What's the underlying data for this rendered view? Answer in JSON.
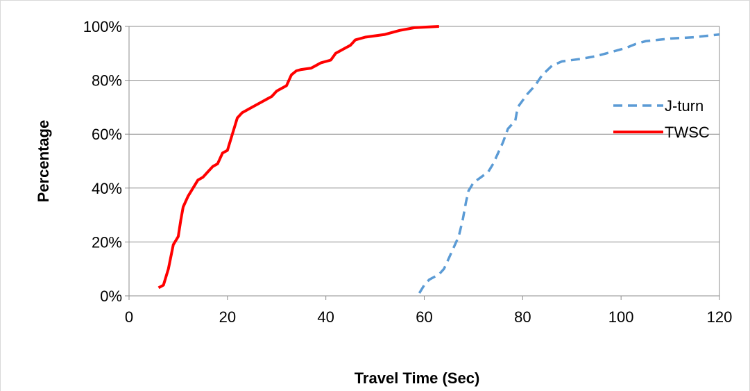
{
  "chart_data": {
    "type": "line",
    "title": "",
    "xlabel": "Travel Time (Sec)",
    "ylabel": "Percentage",
    "xlim": [
      0,
      120
    ],
    "ylim": [
      0,
      100
    ],
    "x_ticks": [
      0,
      20,
      40,
      60,
      80,
      100,
      120
    ],
    "x_tick_labels": [
      "0",
      "20",
      "40",
      "60",
      "80",
      "100",
      "120"
    ],
    "y_ticks": [
      0,
      20,
      40,
      60,
      80,
      100
    ],
    "y_tick_labels": [
      "0%",
      "20%",
      "40%",
      "60%",
      "80%",
      "100%"
    ],
    "grid": "horizontal",
    "legend": "right",
    "series": [
      {
        "name": "J-turn",
        "color": "#5b9bd5",
        "style": "dashed",
        "points": [
          [
            59,
            1
          ],
          [
            60,
            4
          ],
          [
            61,
            6
          ],
          [
            63,
            8
          ],
          [
            64,
            10
          ],
          [
            65,
            14
          ],
          [
            66,
            18
          ],
          [
            67,
            22
          ],
          [
            67.8,
            28
          ],
          [
            68.5,
            35
          ],
          [
            69,
            39
          ],
          [
            70,
            42
          ],
          [
            71.5,
            44
          ],
          [
            73,
            46
          ],
          [
            74,
            49
          ],
          [
            75,
            53
          ],
          [
            76,
            57
          ],
          [
            77,
            62
          ],
          [
            78.5,
            65
          ],
          [
            79,
            70
          ],
          [
            81,
            75
          ],
          [
            82.5,
            78
          ],
          [
            84,
            82
          ],
          [
            86,
            85.5
          ],
          [
            88,
            87
          ],
          [
            92,
            88
          ],
          [
            95,
            89
          ],
          [
            98,
            90.5
          ],
          [
            101,
            92
          ],
          [
            103,
            93.5
          ],
          [
            105,
            94.5
          ],
          [
            110,
            95.5
          ],
          [
            115,
            96
          ],
          [
            120,
            97
          ]
        ]
      },
      {
        "name": "TWSC",
        "color": "#ff0000",
        "style": "solid",
        "points": [
          [
            6,
            3
          ],
          [
            7,
            4
          ],
          [
            8,
            10
          ],
          [
            9,
            19
          ],
          [
            10,
            22
          ],
          [
            10.5,
            28
          ],
          [
            11,
            33
          ],
          [
            12,
            37
          ],
          [
            13,
            40
          ],
          [
            14,
            43
          ],
          [
            15,
            44
          ],
          [
            16,
            46
          ],
          [
            17,
            48
          ],
          [
            18,
            49
          ],
          [
            19,
            53
          ],
          [
            20,
            54
          ],
          [
            21,
            60
          ],
          [
            22,
            66
          ],
          [
            23,
            68
          ],
          [
            25,
            70
          ],
          [
            27,
            72
          ],
          [
            29,
            74
          ],
          [
            30,
            76
          ],
          [
            32,
            78
          ],
          [
            33,
            82
          ],
          [
            34,
            83.5
          ],
          [
            35,
            84
          ],
          [
            37,
            84.5
          ],
          [
            38,
            85.5
          ],
          [
            39,
            86.5
          ],
          [
            41,
            87.5
          ],
          [
            42,
            90
          ],
          [
            44,
            92
          ],
          [
            45,
            93
          ],
          [
            46,
            95
          ],
          [
            48,
            96
          ],
          [
            52,
            97
          ],
          [
            55,
            98.5
          ],
          [
            58,
            99.5
          ],
          [
            63,
            100
          ]
        ]
      }
    ]
  }
}
